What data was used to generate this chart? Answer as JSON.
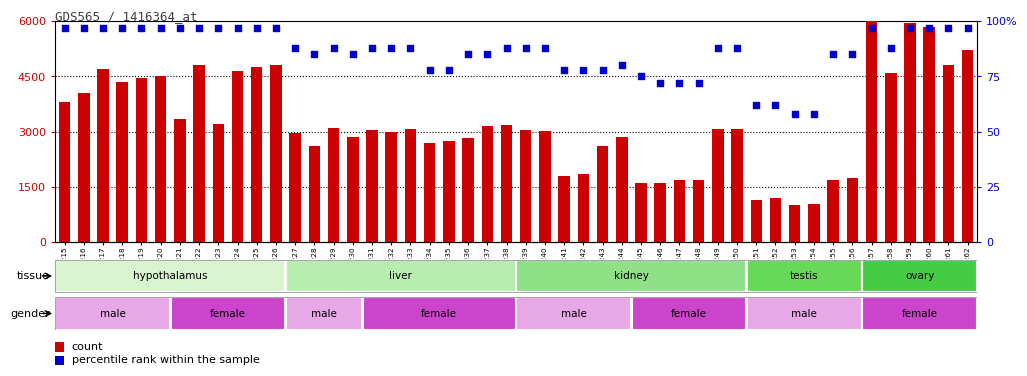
{
  "title": "GDS565 / 1416364_at",
  "samples": [
    "GSM19215",
    "GSM19216",
    "GSM19217",
    "GSM19218",
    "GSM19219",
    "GSM19220",
    "GSM19221",
    "GSM19222",
    "GSM19223",
    "GSM19224",
    "GSM19225",
    "GSM19226",
    "GSM19227",
    "GSM19228",
    "GSM19229",
    "GSM19230",
    "GSM19231",
    "GSM19232",
    "GSM19233",
    "GSM19234",
    "GSM19235",
    "GSM19236",
    "GSM19237",
    "GSM19238",
    "GSM19239",
    "GSM19240",
    "GSM19241",
    "GSM19242",
    "GSM19243",
    "GSM19244",
    "GSM19245",
    "GSM19246",
    "GSM19247",
    "GSM19248",
    "GSM19249",
    "GSM19250",
    "GSM19251",
    "GSM19252",
    "GSM19253",
    "GSM19254",
    "GSM19255",
    "GSM19256",
    "GSM19257",
    "GSM19258",
    "GSM19259",
    "GSM19260",
    "GSM19261",
    "GSM19262"
  ],
  "counts": [
    3800,
    4050,
    4700,
    4350,
    4450,
    4500,
    3350,
    4800,
    3200,
    4650,
    4750,
    4800,
    2950,
    2600,
    3100,
    2850,
    3050,
    2980,
    3080,
    2700,
    2750,
    2820,
    3150,
    3180,
    3050,
    3020,
    1800,
    1850,
    2600,
    2850,
    1620,
    1600,
    1680,
    1680,
    3080,
    3080,
    1150,
    1200,
    1000,
    1050,
    1700,
    1750,
    6000,
    4600,
    5950,
    5850,
    4800,
    5200
  ],
  "percentiles": [
    97,
    97,
    97,
    97,
    97,
    97,
    97,
    97,
    97,
    97,
    97,
    97,
    88,
    85,
    88,
    85,
    88,
    88,
    88,
    78,
    78,
    85,
    85,
    88,
    88,
    88,
    78,
    78,
    78,
    80,
    75,
    72,
    72,
    72,
    88,
    88,
    62,
    62,
    58,
    58,
    85,
    85,
    97,
    88,
    97,
    97,
    97,
    97
  ],
  "tissue_groups": [
    {
      "label": "hypothalamus",
      "start": 0,
      "end": 12,
      "color": "#d8f5d0"
    },
    {
      "label": "liver",
      "start": 12,
      "end": 24,
      "color": "#b8edb0"
    },
    {
      "label": "kidney",
      "start": 24,
      "end": 36,
      "color": "#90e088"
    },
    {
      "label": "testis",
      "start": 36,
      "end": 42,
      "color": "#68d860"
    },
    {
      "label": "ovary",
      "start": 42,
      "end": 48,
      "color": "#44cc44"
    }
  ],
  "gender_groups": [
    {
      "label": "male",
      "start": 0,
      "end": 6
    },
    {
      "label": "female",
      "start": 6,
      "end": 12
    },
    {
      "label": "male",
      "start": 12,
      "end": 16
    },
    {
      "label": "female",
      "start": 16,
      "end": 24
    },
    {
      "label": "male",
      "start": 24,
      "end": 30
    },
    {
      "label": "female",
      "start": 30,
      "end": 36
    },
    {
      "label": "male",
      "start": 36,
      "end": 42
    },
    {
      "label": "female",
      "start": 42,
      "end": 48
    }
  ],
  "male_color": "#e8a8e8",
  "female_color": "#cc44cc",
  "bar_color": "#cc0000",
  "dot_color": "#0000cc",
  "ylim_left": [
    0,
    6000
  ],
  "ylim_right": [
    0,
    100
  ],
  "yticks_left": [
    0,
    1500,
    3000,
    4500,
    6000
  ],
  "yticks_right": [
    0,
    25,
    50,
    75,
    100
  ],
  "axis_label_color": "#cc0000",
  "right_axis_color": "#0000cc",
  "title_color": "#404040"
}
